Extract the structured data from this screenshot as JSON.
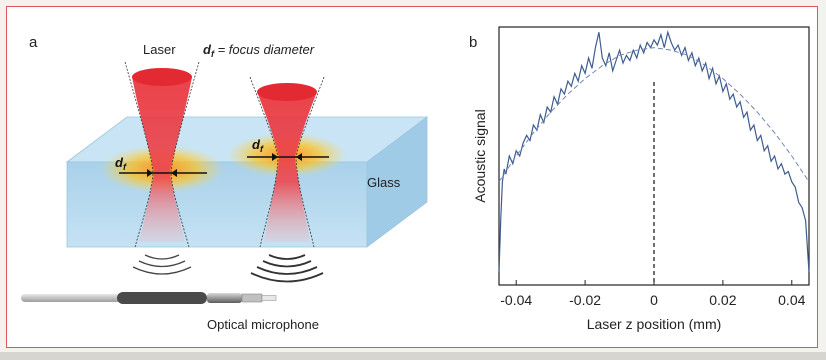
{
  "figure": {
    "panel_a": {
      "label": "a",
      "laser_label": "Laser",
      "focus_definition": "d_f = focus diameter",
      "focus_symbol": "d",
      "focus_sub": "f",
      "focus_rest": " = focus diameter",
      "glass_label": "Glass",
      "microphone_label": "Optical microphone"
    },
    "panel_b": {
      "label": "b"
    },
    "colors": {
      "glass": "#b9dbee",
      "laser": "#e8313a",
      "border": "#e0565b",
      "curve": "#3f5c8f"
    }
  },
  "chart_data": {
    "type": "line",
    "xlabel": "Laser z position (mm)",
    "ylabel": "Acoustic signal",
    "xlim": [
      -0.045,
      0.045
    ],
    "ylim": [
      0,
      1
    ],
    "xticks": [
      -0.04,
      -0.02,
      0,
      0.02,
      0.04
    ],
    "xtick_labels": [
      "-0.04",
      "-0.02",
      "0",
      "0.02",
      "0.04"
    ],
    "vline_x": 0,
    "series": [
      {
        "style": "solid",
        "x": [
          -0.045,
          -0.0445,
          -0.044,
          -0.0435,
          -0.043,
          -0.042,
          -0.041,
          -0.04,
          -0.039,
          -0.038,
          -0.037,
          -0.036,
          -0.035,
          -0.034,
          -0.033,
          -0.032,
          -0.031,
          -0.03,
          -0.029,
          -0.028,
          -0.027,
          -0.026,
          -0.025,
          -0.024,
          -0.023,
          -0.022,
          -0.021,
          -0.02,
          -0.019,
          -0.018,
          -0.017,
          -0.016,
          -0.015,
          -0.014,
          -0.013,
          -0.012,
          -0.011,
          -0.01,
          -0.009,
          -0.008,
          -0.007,
          -0.006,
          -0.005,
          -0.004,
          -0.003,
          -0.002,
          -0.001,
          0.0,
          0.001,
          0.002,
          0.003,
          0.004,
          0.005,
          0.006,
          0.007,
          0.008,
          0.009,
          0.01,
          0.011,
          0.012,
          0.013,
          0.014,
          0.015,
          0.016,
          0.017,
          0.018,
          0.019,
          0.02,
          0.021,
          0.022,
          0.023,
          0.024,
          0.025,
          0.026,
          0.027,
          0.028,
          0.029,
          0.03,
          0.031,
          0.032,
          0.033,
          0.034,
          0.035,
          0.036,
          0.037,
          0.038,
          0.039,
          0.04,
          0.041,
          0.042,
          0.043,
          0.044,
          0.0445,
          0.045
        ],
        "y": [
          0.05,
          0.25,
          0.4,
          0.45,
          0.43,
          0.5,
          0.47,
          0.52,
          0.5,
          0.55,
          0.58,
          0.56,
          0.62,
          0.6,
          0.66,
          0.63,
          0.69,
          0.67,
          0.73,
          0.7,
          0.76,
          0.74,
          0.79,
          0.77,
          0.82,
          0.79,
          0.85,
          0.82,
          0.88,
          0.84,
          0.92,
          0.98,
          0.88,
          0.85,
          0.9,
          0.83,
          0.87,
          0.91,
          0.86,
          0.89,
          0.87,
          0.91,
          0.88,
          0.93,
          0.9,
          0.94,
          0.92,
          0.95,
          0.93,
          0.97,
          0.92,
          0.98,
          0.94,
          0.91,
          0.93,
          0.89,
          0.92,
          0.87,
          0.9,
          0.85,
          0.88,
          0.83,
          0.86,
          0.8,
          0.84,
          0.78,
          0.81,
          0.75,
          0.78,
          0.72,
          0.74,
          0.69,
          0.71,
          0.65,
          0.67,
          0.6,
          0.62,
          0.56,
          0.58,
          0.52,
          0.54,
          0.48,
          0.5,
          0.45,
          0.47,
          0.43,
          0.44,
          0.4,
          0.38,
          0.32,
          0.3,
          0.25,
          0.15,
          0.05
        ]
      },
      {
        "style": "dashed",
        "x": [
          -0.045,
          -0.04,
          -0.035,
          -0.03,
          -0.025,
          -0.02,
          -0.015,
          -0.01,
          -0.005,
          0.0,
          0.005,
          0.01,
          0.015,
          0.02,
          0.025,
          0.03,
          0.035,
          0.04,
          0.045
        ],
        "y": [
          0.4,
          0.5,
          0.59,
          0.67,
          0.74,
          0.8,
          0.85,
          0.89,
          0.91,
          0.92,
          0.91,
          0.89,
          0.85,
          0.8,
          0.74,
          0.67,
          0.59,
          0.5,
          0.4
        ]
      }
    ]
  }
}
